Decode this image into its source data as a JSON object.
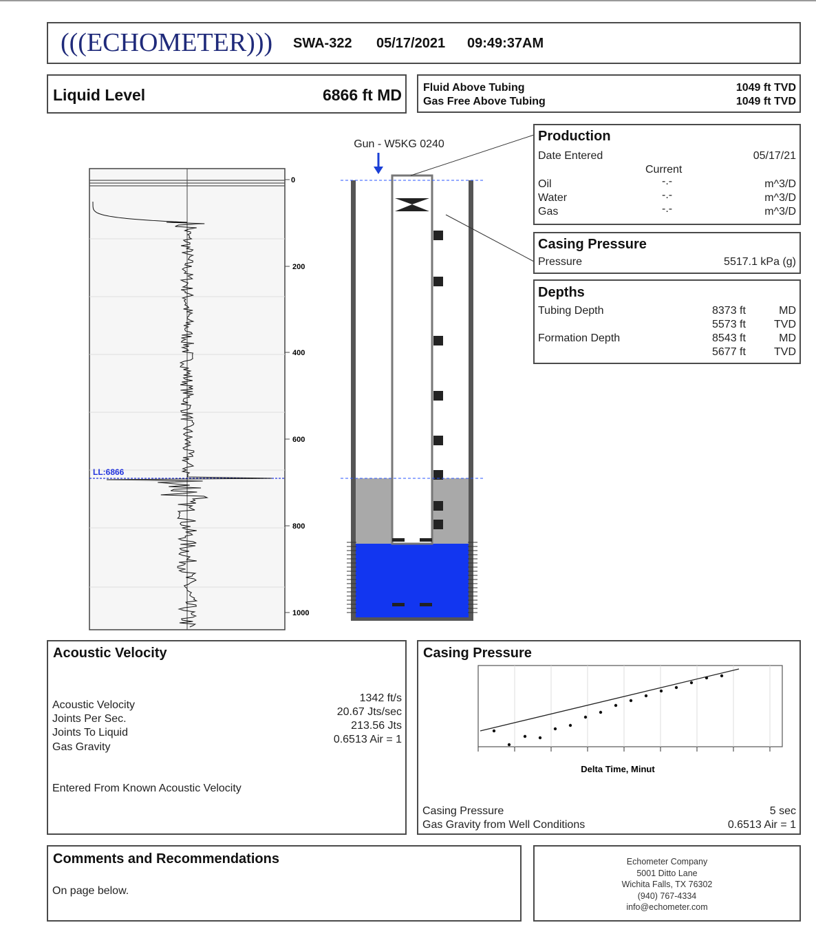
{
  "header": {
    "logo": "(((ECHOMETER)))",
    "well": "SWA-322",
    "date": "05/17/2021",
    "time": "09:49:37AM"
  },
  "liquid_level": {
    "label": "Liquid Level",
    "value": "6866 ft MD"
  },
  "fluid": {
    "rows": [
      [
        "Fluid Above Tubing",
        "1049 ft TVD"
      ],
      [
        "Gas Free Above Tubing",
        "1049 ft TVD"
      ]
    ]
  },
  "trace": {
    "depth_labels": [
      "0",
      "200",
      "400",
      "600",
      "800",
      "1000"
    ],
    "ll_label": "LL:6866"
  },
  "wellbore": {
    "gun": "Gun - W5KG 0240"
  },
  "production": {
    "title": "Production",
    "date_label": "Date Entered",
    "date_value": "05/17/21",
    "current": "Current",
    "rows": [
      [
        "Oil",
        "-.-",
        "m^3/D"
      ],
      [
        "Water",
        "-.-",
        "m^3/D"
      ],
      [
        "Gas",
        "-.-",
        "m^3/D"
      ]
    ]
  },
  "casing_pressure": {
    "title": "Casing Pressure",
    "label": "Pressure",
    "value": "5517.1 kPa (g)"
  },
  "depths": {
    "title": "Depths",
    "rows": [
      {
        "label": "Tubing Depth",
        "values": [
          [
            "8373 ft",
            "MD"
          ],
          [
            "5573 ft",
            "TVD"
          ]
        ]
      },
      {
        "label": "Formation Depth",
        "values": [
          [
            "8543 ft",
            "MD"
          ],
          [
            "5677 ft",
            "TVD"
          ]
        ]
      }
    ]
  },
  "acoustic": {
    "title": "Acoustic Velocity",
    "labels": [
      "Acoustic Velocity",
      "Joints Per Sec.",
      "Joints To Liquid",
      "Gas Gravity"
    ],
    "values": [
      "1342 ft/s",
      "20.67 Jts/sec",
      "213.56 Jts",
      "0.6513 Air = 1"
    ],
    "note": "Entered From Known Acoustic Velocity"
  },
  "cp_chart": {
    "title": "Casing Pressure",
    "x_label": "Delta Time, Minut",
    "rows": [
      [
        "Casing Pressure",
        "5 sec"
      ],
      [
        "Gas Gravity from Well Conditions",
        "0.6513 Air = 1"
      ]
    ]
  },
  "comments": {
    "title": "Comments and Recommendations",
    "text": "On page below."
  },
  "address": {
    "lines": [
      "Echometer Company",
      "5001 Ditto Lane",
      "Wichita Falls, TX 76302",
      "(940) 767-4334",
      "info@echometer.com"
    ]
  }
}
